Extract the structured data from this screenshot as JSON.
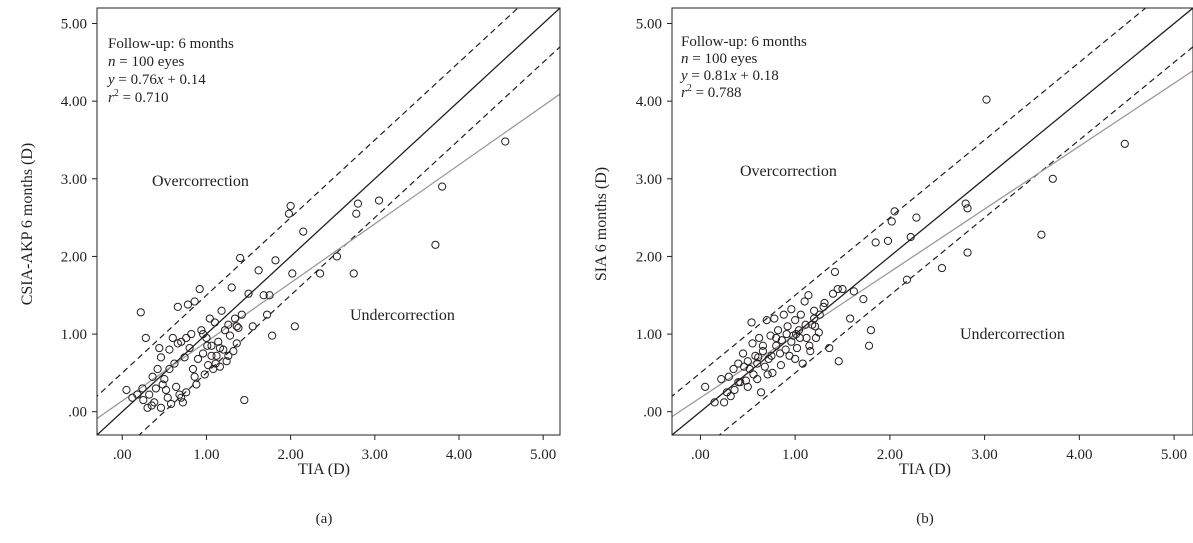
{
  "chart_data": [
    {
      "type": "scatter",
      "panel_label": "(a)",
      "xlabel": "TIA (D)",
      "ylabel": "CSIA-AKP 6 months (D)",
      "xlim": [
        -0.3,
        5.2
      ],
      "ylim": [
        -0.3,
        5.2
      ],
      "xticks": [
        0,
        1,
        2,
        3,
        4,
        5
      ],
      "yticks": [
        0,
        1,
        2,
        3,
        4,
        5
      ],
      "xtick_labels": [
        ".00",
        "1.00",
        "2.00",
        "3.00",
        "4.00",
        "5.00"
      ],
      "ytick_labels": [
        ".00",
        "1.00",
        "2.00",
        "3.00",
        "4.00",
        "5.00"
      ],
      "annotation": {
        "line1": "Follow-up: 6 months",
        "n_var": "n",
        "n_text": " = 100 eyes",
        "eq_y": "y",
        "eq_mid": " = 0.76",
        "eq_x": "x",
        "eq_end": " + 0.14",
        "r_var": "r",
        "r_sup": "2",
        "r_text": " = 0.710"
      },
      "region_labels": {
        "over": "Overcorrection",
        "under": "Undercorrection"
      },
      "regression": {
        "slope": 0.76,
        "intercept": 0.14
      },
      "identity_band": 0.5,
      "points": [
        [
          0.05,
          0.28
        ],
        [
          0.12,
          0.18
        ],
        [
          0.18,
          0.22
        ],
        [
          0.22,
          1.28
        ],
        [
          0.25,
          0.15
        ],
        [
          0.28,
          0.95
        ],
        [
          0.3,
          0.05
        ],
        [
          0.32,
          0.22
        ],
        [
          0.35,
          0.08
        ],
        [
          0.38,
          0.12
        ],
        [
          0.4,
          0.3
        ],
        [
          0.42,
          0.55
        ],
        [
          0.44,
          0.82
        ],
        [
          0.46,
          0.05
        ],
        [
          0.48,
          0.35
        ],
        [
          0.5,
          0.42
        ],
        [
          0.52,
          0.28
        ],
        [
          0.54,
          0.18
        ],
        [
          0.56,
          0.8
        ],
        [
          0.58,
          0.1
        ],
        [
          0.6,
          0.95
        ],
        [
          0.62,
          0.62
        ],
        [
          0.64,
          0.32
        ],
        [
          0.66,
          1.35
        ],
        [
          0.68,
          0.22
        ],
        [
          0.7,
          0.9
        ],
        [
          0.72,
          0.12
        ],
        [
          0.74,
          0.7
        ],
        [
          0.76,
          0.25
        ],
        [
          0.78,
          1.38
        ],
        [
          0.8,
          0.82
        ],
        [
          0.82,
          1.0
        ],
        [
          0.84,
          0.55
        ],
        [
          0.86,
          1.42
        ],
        [
          0.88,
          0.35
        ],
        [
          0.9,
          0.68
        ],
        [
          0.92,
          1.58
        ],
        [
          0.94,
          1.05
        ],
        [
          0.96,
          0.75
        ],
        [
          0.98,
          0.48
        ],
        [
          1.0,
          0.95
        ],
        [
          1.02,
          0.6
        ],
        [
          1.04,
          1.2
        ],
        [
          1.06,
          0.85
        ],
        [
          1.08,
          0.55
        ],
        [
          1.1,
          1.15
        ],
        [
          1.12,
          0.72
        ],
        [
          1.14,
          0.9
        ],
        [
          1.16,
          0.58
        ],
        [
          1.18,
          1.3
        ],
        [
          1.2,
          0.8
        ],
        [
          1.22,
          1.05
        ],
        [
          1.24,
          0.65
        ],
        [
          1.26,
          1.12
        ],
        [
          1.28,
          0.98
        ],
        [
          1.3,
          1.6
        ],
        [
          1.32,
          0.78
        ],
        [
          1.34,
          1.2
        ],
        [
          1.36,
          0.88
        ],
        [
          1.38,
          1.08
        ],
        [
          1.4,
          1.98
        ],
        [
          1.42,
          1.25
        ],
        [
          1.45,
          0.15
        ],
        [
          1.5,
          1.52
        ],
        [
          1.55,
          1.1
        ],
        [
          1.62,
          1.82
        ],
        [
          1.68,
          1.5
        ],
        [
          1.72,
          1.25
        ],
        [
          1.75,
          1.5
        ],
        [
          1.78,
          0.98
        ],
        [
          1.82,
          1.95
        ],
        [
          1.98,
          2.55
        ],
        [
          2.0,
          2.65
        ],
        [
          2.02,
          1.78
        ],
        [
          2.05,
          1.1
        ],
        [
          2.15,
          2.32
        ],
        [
          2.35,
          1.78
        ],
        [
          2.55,
          2.0
        ],
        [
          2.75,
          1.78
        ],
        [
          2.78,
          2.55
        ],
        [
          2.8,
          2.68
        ],
        [
          3.05,
          2.72
        ],
        [
          3.72,
          2.15
        ],
        [
          3.8,
          2.9
        ],
        [
          4.55,
          3.48
        ],
        [
          0.36,
          0.45
        ],
        [
          0.66,
          0.88
        ],
        [
          0.86,
          0.45
        ],
        [
          1.06,
          0.72
        ],
        [
          1.11,
          0.62
        ],
        [
          0.56,
          0.55
        ],
        [
          0.7,
          0.18
        ],
        [
          0.96,
          1.0
        ],
        [
          1.01,
          0.85
        ],
        [
          1.16,
          0.82
        ],
        [
          0.24,
          0.3
        ],
        [
          0.46,
          0.7
        ],
        [
          0.76,
          0.95
        ],
        [
          1.26,
          0.72
        ],
        [
          1.36,
          1.1
        ]
      ]
    },
    {
      "type": "scatter",
      "panel_label": "(b)",
      "xlabel": "TIA (D)",
      "ylabel": "SIA 6 months (D)",
      "xlim": [
        -0.3,
        5.2
      ],
      "ylim": [
        -0.3,
        5.2
      ],
      "xticks": [
        0,
        1,
        2,
        3,
        4,
        5
      ],
      "yticks": [
        0,
        1,
        2,
        3,
        4,
        5
      ],
      "xtick_labels": [
        ".00",
        "1.00",
        "2.00",
        "3.00",
        "4.00",
        "5.00"
      ],
      "ytick_labels": [
        ".00",
        "1.00",
        "2.00",
        "3.00",
        "4.00",
        "5.00"
      ],
      "annotation": {
        "line1": "Follow-up: 6 months",
        "n_var": "n",
        "n_text": " = 100 eyes",
        "eq_y": "y",
        "eq_mid": " = 0.81",
        "eq_x": "x",
        "eq_end": " + 0.18",
        "r_var": "r",
        "r_sup": "2",
        "r_text": " = 0.788"
      },
      "region_labels": {
        "over": "Overcorrection",
        "under": "Undercorrection"
      },
      "regression": {
        "slope": 0.81,
        "intercept": 0.18
      },
      "identity_band": 0.5,
      "points": [
        [
          0.05,
          0.32
        ],
        [
          0.15,
          0.12
        ],
        [
          0.22,
          0.42
        ],
        [
          0.28,
          0.25
        ],
        [
          0.3,
          0.45
        ],
        [
          0.32,
          0.2
        ],
        [
          0.36,
          0.28
        ],
        [
          0.4,
          0.62
        ],
        [
          0.42,
          0.38
        ],
        [
          0.45,
          0.75
        ],
        [
          0.48,
          0.4
        ],
        [
          0.5,
          0.65
        ],
        [
          0.52,
          0.55
        ],
        [
          0.54,
          1.15
        ],
        [
          0.56,
          0.48
        ],
        [
          0.58,
          0.72
        ],
        [
          0.6,
          0.62
        ],
        [
          0.62,
          0.95
        ],
        [
          0.64,
          0.25
        ],
        [
          0.66,
          0.78
        ],
        [
          0.68,
          0.58
        ],
        [
          0.7,
          1.18
        ],
        [
          0.72,
          0.68
        ],
        [
          0.74,
          0.98
        ],
        [
          0.76,
          0.5
        ],
        [
          0.78,
          1.2
        ],
        [
          0.8,
          0.85
        ],
        [
          0.82,
          1.05
        ],
        [
          0.84,
          0.75
        ],
        [
          0.86,
          0.92
        ],
        [
          0.88,
          1.25
        ],
        [
          0.9,
          0.8
        ],
        [
          0.92,
          1.1
        ],
        [
          0.94,
          0.72
        ],
        [
          0.96,
          1.32
        ],
        [
          0.98,
          0.98
        ],
        [
          1.0,
          1.18
        ],
        [
          1.02,
          0.82
        ],
        [
          1.04,
          1.05
        ],
        [
          1.06,
          1.25
        ],
        [
          1.08,
          0.62
        ],
        [
          1.1,
          1.42
        ],
        [
          1.12,
          0.95
        ],
        [
          1.14,
          1.5
        ],
        [
          1.16,
          0.78
        ],
        [
          1.18,
          1.12
        ],
        [
          1.2,
          1.3
        ],
        [
          1.22,
          0.95
        ],
        [
          1.26,
          1.25
        ],
        [
          1.3,
          1.35
        ],
        [
          1.36,
          0.82
        ],
        [
          1.4,
          1.52
        ],
        [
          1.42,
          1.8
        ],
        [
          1.46,
          0.65
        ],
        [
          1.5,
          1.58
        ],
        [
          1.58,
          1.2
        ],
        [
          1.62,
          1.55
        ],
        [
          1.72,
          1.45
        ],
        [
          1.78,
          0.85
        ],
        [
          1.8,
          1.05
        ],
        [
          1.85,
          2.18
        ],
        [
          1.98,
          2.2
        ],
        [
          2.02,
          2.45
        ],
        [
          2.05,
          2.58
        ],
        [
          2.18,
          1.7
        ],
        [
          2.22,
          2.25
        ],
        [
          2.28,
          2.5
        ],
        [
          2.55,
          1.85
        ],
        [
          2.8,
          2.68
        ],
        [
          2.82,
          2.05
        ],
        [
          2.82,
          2.62
        ],
        [
          3.02,
          4.02
        ],
        [
          3.6,
          2.28
        ],
        [
          3.72,
          3.0
        ],
        [
          4.48,
          3.45
        ],
        [
          0.25,
          0.12
        ],
        [
          0.46,
          0.58
        ],
        [
          0.61,
          0.7
        ],
        [
          0.71,
          0.48
        ],
        [
          0.96,
          0.9
        ],
        [
          1.01,
          1.0
        ],
        [
          1.11,
          1.12
        ],
        [
          0.55,
          0.88
        ],
        [
          0.85,
          0.6
        ],
        [
          1.21,
          1.1
        ],
        [
          0.4,
          0.38
        ],
        [
          0.66,
          0.85
        ],
        [
          0.91,
          1.0
        ],
        [
          1.15,
          0.85
        ],
        [
          1.31,
          1.4
        ],
        [
          0.35,
          0.55
        ],
        [
          0.5,
          0.32
        ],
        [
          0.75,
          0.72
        ],
        [
          1.05,
          0.95
        ],
        [
          1.25,
          1.02
        ],
        [
          1.45,
          1.58
        ],
        [
          0.6,
          0.42
        ],
        [
          0.8,
          0.95
        ],
        [
          1.0,
          0.68
        ],
        [
          1.2,
          1.2
        ]
      ]
    }
  ]
}
